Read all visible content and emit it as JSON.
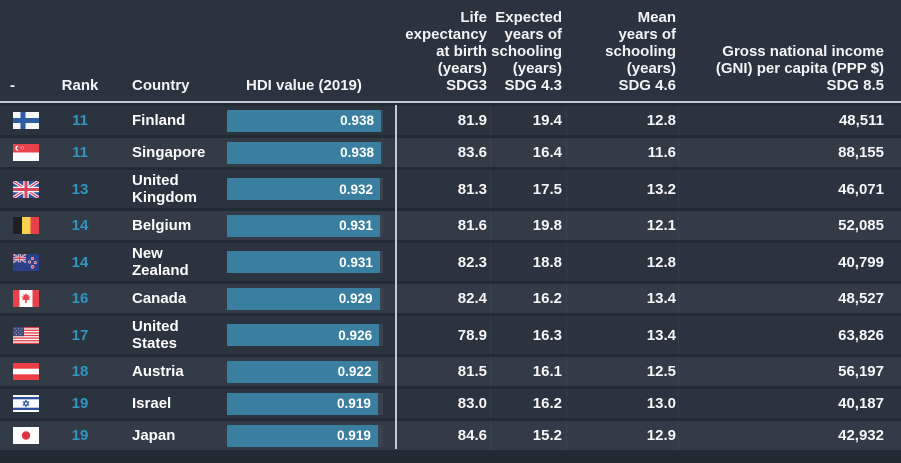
{
  "header": {
    "flag_col": "-",
    "rank_col": "Rank",
    "country_col": "Country",
    "hdi_col": "HDI value (2019)",
    "life_col": "Life\nexpectancy\nat birth\n(years)\nSDG3",
    "expected_col": "Expected\nyears of\nschooling\n(years)\nSDG 4.3",
    "mean_col": "Mean\nyears of\nschooling\n(years)\nSDG 4.6",
    "gni_col": "Gross national income\n(GNI) per capita (PPP $)\nSDG 8.5"
  },
  "colors": {
    "rank_accent": "#3095c2",
    "bar_fill": "#3a7f9f",
    "bar_track": "#3a434e",
    "row_dark": "#2a333e",
    "row_light": "#323b46",
    "divider": "#c3cad2",
    "background": "#222a34"
  },
  "table": {
    "hdi_bar_scale_max": 0.95,
    "rows": [
      {
        "flag": "finland",
        "flag_icon": "finland-flag-icon",
        "rank": "11",
        "country": "Finland",
        "hdi_label": "0.938",
        "hdi_value": 0.938,
        "life_expectancy": "81.9",
        "expected_schooling": "19.4",
        "mean_schooling": "12.8",
        "gni_per_capita": "48,511"
      },
      {
        "flag": "singapore",
        "flag_icon": "singapore-flag-icon",
        "rank": "11",
        "country": "Singapore",
        "hdi_label": "0.938",
        "hdi_value": 0.938,
        "life_expectancy": "83.6",
        "expected_schooling": "16.4",
        "mean_schooling": "11.6",
        "gni_per_capita": "88,155"
      },
      {
        "flag": "united-kingdom",
        "flag_icon": "united-kingdom-flag-icon",
        "rank": "13",
        "country": "United Kingdom",
        "hdi_label": "0.932",
        "hdi_value": 0.932,
        "life_expectancy": "81.3",
        "expected_schooling": "17.5",
        "mean_schooling": "13.2",
        "gni_per_capita": "46,071"
      },
      {
        "flag": "belgium",
        "flag_icon": "belgium-flag-icon",
        "rank": "14",
        "country": "Belgium",
        "hdi_label": "0.931",
        "hdi_value": 0.931,
        "life_expectancy": "81.6",
        "expected_schooling": "19.8",
        "mean_schooling": "12.1",
        "gni_per_capita": "52,085"
      },
      {
        "flag": "new-zealand",
        "flag_icon": "new-zealand-flag-icon",
        "rank": "14",
        "country": "New Zealand",
        "hdi_label": "0.931",
        "hdi_value": 0.931,
        "life_expectancy": "82.3",
        "expected_schooling": "18.8",
        "mean_schooling": "12.8",
        "gni_per_capita": "40,799"
      },
      {
        "flag": "canada",
        "flag_icon": "canada-flag-icon",
        "rank": "16",
        "country": "Canada",
        "hdi_label": "0.929",
        "hdi_value": 0.929,
        "life_expectancy": "82.4",
        "expected_schooling": "16.2",
        "mean_schooling": "13.4",
        "gni_per_capita": "48,527"
      },
      {
        "flag": "united-states",
        "flag_icon": "united-states-flag-icon",
        "rank": "17",
        "country": "United States",
        "hdi_label": "0.926",
        "hdi_value": 0.926,
        "life_expectancy": "78.9",
        "expected_schooling": "16.3",
        "mean_schooling": "13.4",
        "gni_per_capita": "63,826"
      },
      {
        "flag": "austria",
        "flag_icon": "austria-flag-icon",
        "rank": "18",
        "country": "Austria",
        "hdi_label": "0.922",
        "hdi_value": 0.922,
        "life_expectancy": "81.5",
        "expected_schooling": "16.1",
        "mean_schooling": "12.5",
        "gni_per_capita": "56,197"
      },
      {
        "flag": "israel",
        "flag_icon": "israel-flag-icon",
        "rank": "19",
        "country": "Israel",
        "hdi_label": "0.919",
        "hdi_value": 0.919,
        "life_expectancy": "83.0",
        "expected_schooling": "16.2",
        "mean_schooling": "13.0",
        "gni_per_capita": "40,187"
      },
      {
        "flag": "japan",
        "flag_icon": "japan-flag-icon",
        "rank": "19",
        "country": "Japan",
        "hdi_label": "0.919",
        "hdi_value": 0.919,
        "life_expectancy": "84.6",
        "expected_schooling": "15.2",
        "mean_schooling": "12.9",
        "gni_per_capita": "42,932"
      }
    ]
  }
}
